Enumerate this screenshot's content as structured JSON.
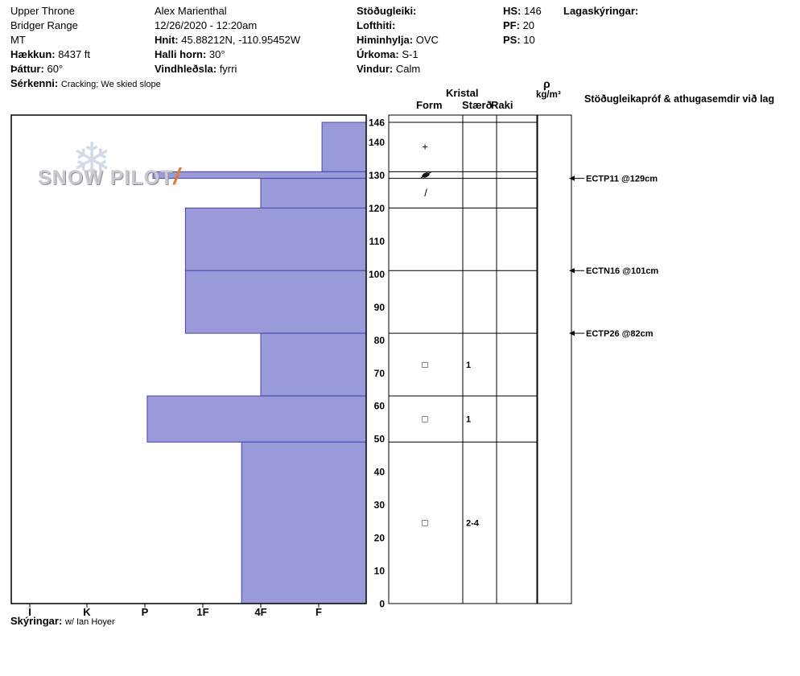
{
  "header": {
    "col1": {
      "site": "Upper Throne",
      "range": "Bridger Range",
      "state": "MT",
      "elevation_label": "Hækkun:",
      "elevation_value": "8437 ft",
      "aspect_label": "Þáttur:",
      "aspect_value": "60°",
      "notes_label": "Sérkenni:",
      "notes_value": "Cracking; We skied slope"
    },
    "col2": {
      "observer": "Alex Marienthal",
      "datetime": "12/26/2020 - 12:20am",
      "coords_label": "Hnit:",
      "coords_value": "45.88212N, -110.95452W",
      "slope_label": "Halli horn:",
      "slope_value": "30°",
      "windloading_label": "Vindhleðsla:",
      "windloading_value": "fyrri"
    },
    "col3": {
      "stability_label": "Stöðugleiki:",
      "airtemp_label": "Lofthiti:",
      "sky_label": "Himinhylja:",
      "sky_value": "OVC",
      "precip_label": "Úrkoma:",
      "precip_value": "S-1",
      "wind_label": "Vindur:",
      "wind_value": "Calm"
    },
    "col4": {
      "hs_label": "HS:",
      "hs_value": "146",
      "pf_label": "PF:",
      "pf_value": "20",
      "ps_label": "PS:",
      "ps_value": "10"
    },
    "col5": {
      "legend_label": "Lagaskýringar:"
    }
  },
  "panel": {
    "crystal_header": "Kristal",
    "form_header": "Form",
    "size_header": "Stærð",
    "moisture_header": "Raki",
    "density_symbol": "ρ",
    "density_units": "kg/m³",
    "tests_header": "Stöðugleikapróf & athugasemdir við lag"
  },
  "logo": {
    "word1": "SNOW",
    "word2": "PILOT",
    "flake_icon": "❄",
    "slash_icon": "/"
  },
  "footer": {
    "label": "Skýringar:",
    "value": "w/ Ian Hoyer"
  },
  "chart_data": {
    "type": "bar",
    "subtype": "snow-hardness-profile",
    "orientation": "horizontal",
    "depth_unit": "cm",
    "depth_max": 146,
    "depth_ticks": [
      0,
      10,
      20,
      30,
      40,
      50,
      60,
      70,
      80,
      90,
      100,
      110,
      120,
      130,
      140,
      146
    ],
    "hardness_ticks": [
      "I",
      "K",
      "P",
      "1F",
      "4F",
      "F"
    ],
    "bar_fill": "#9a9ad8",
    "bar_stroke": "#4343b8",
    "layers": [
      {
        "top_cm": 146,
        "bottom_cm": 131,
        "hardness": "F",
        "hardness_index": 0.93,
        "grain_form": "plus"
      },
      {
        "top_cm": 131,
        "bottom_cm": 129,
        "hardness": "P",
        "hardness_index": 3.86,
        "grain_form": "crust"
      },
      {
        "top_cm": 129,
        "bottom_cm": 120,
        "hardness": "4F",
        "hardness_index": 2.0,
        "grain_form": "slash"
      },
      {
        "top_cm": 120,
        "bottom_cm": 101,
        "hardness": "1F+",
        "hardness_index": 3.3
      },
      {
        "top_cm": 101,
        "bottom_cm": 82,
        "hardness": "1F+",
        "hardness_index": 3.3
      },
      {
        "top_cm": 82,
        "bottom_cm": 63,
        "hardness": "4F",
        "hardness_index": 2.0,
        "grain_form": "square",
        "grain_size": "1"
      },
      {
        "top_cm": 63,
        "bottom_cm": 49,
        "hardness": "P",
        "hardness_index": 3.96,
        "grain_form": "square",
        "grain_size": "1"
      },
      {
        "top_cm": 49,
        "bottom_cm": 0,
        "hardness": "4F+",
        "hardness_index": 2.33,
        "grain_form": "square",
        "grain_size": "2-4"
      }
    ],
    "tests": [
      {
        "label": "ECTP11 @129cm",
        "depth_cm": 129
      },
      {
        "label": "ECTN16 @101cm",
        "depth_cm": 101
      },
      {
        "label": "ECTP26 @82cm",
        "depth_cm": 82
      }
    ]
  }
}
